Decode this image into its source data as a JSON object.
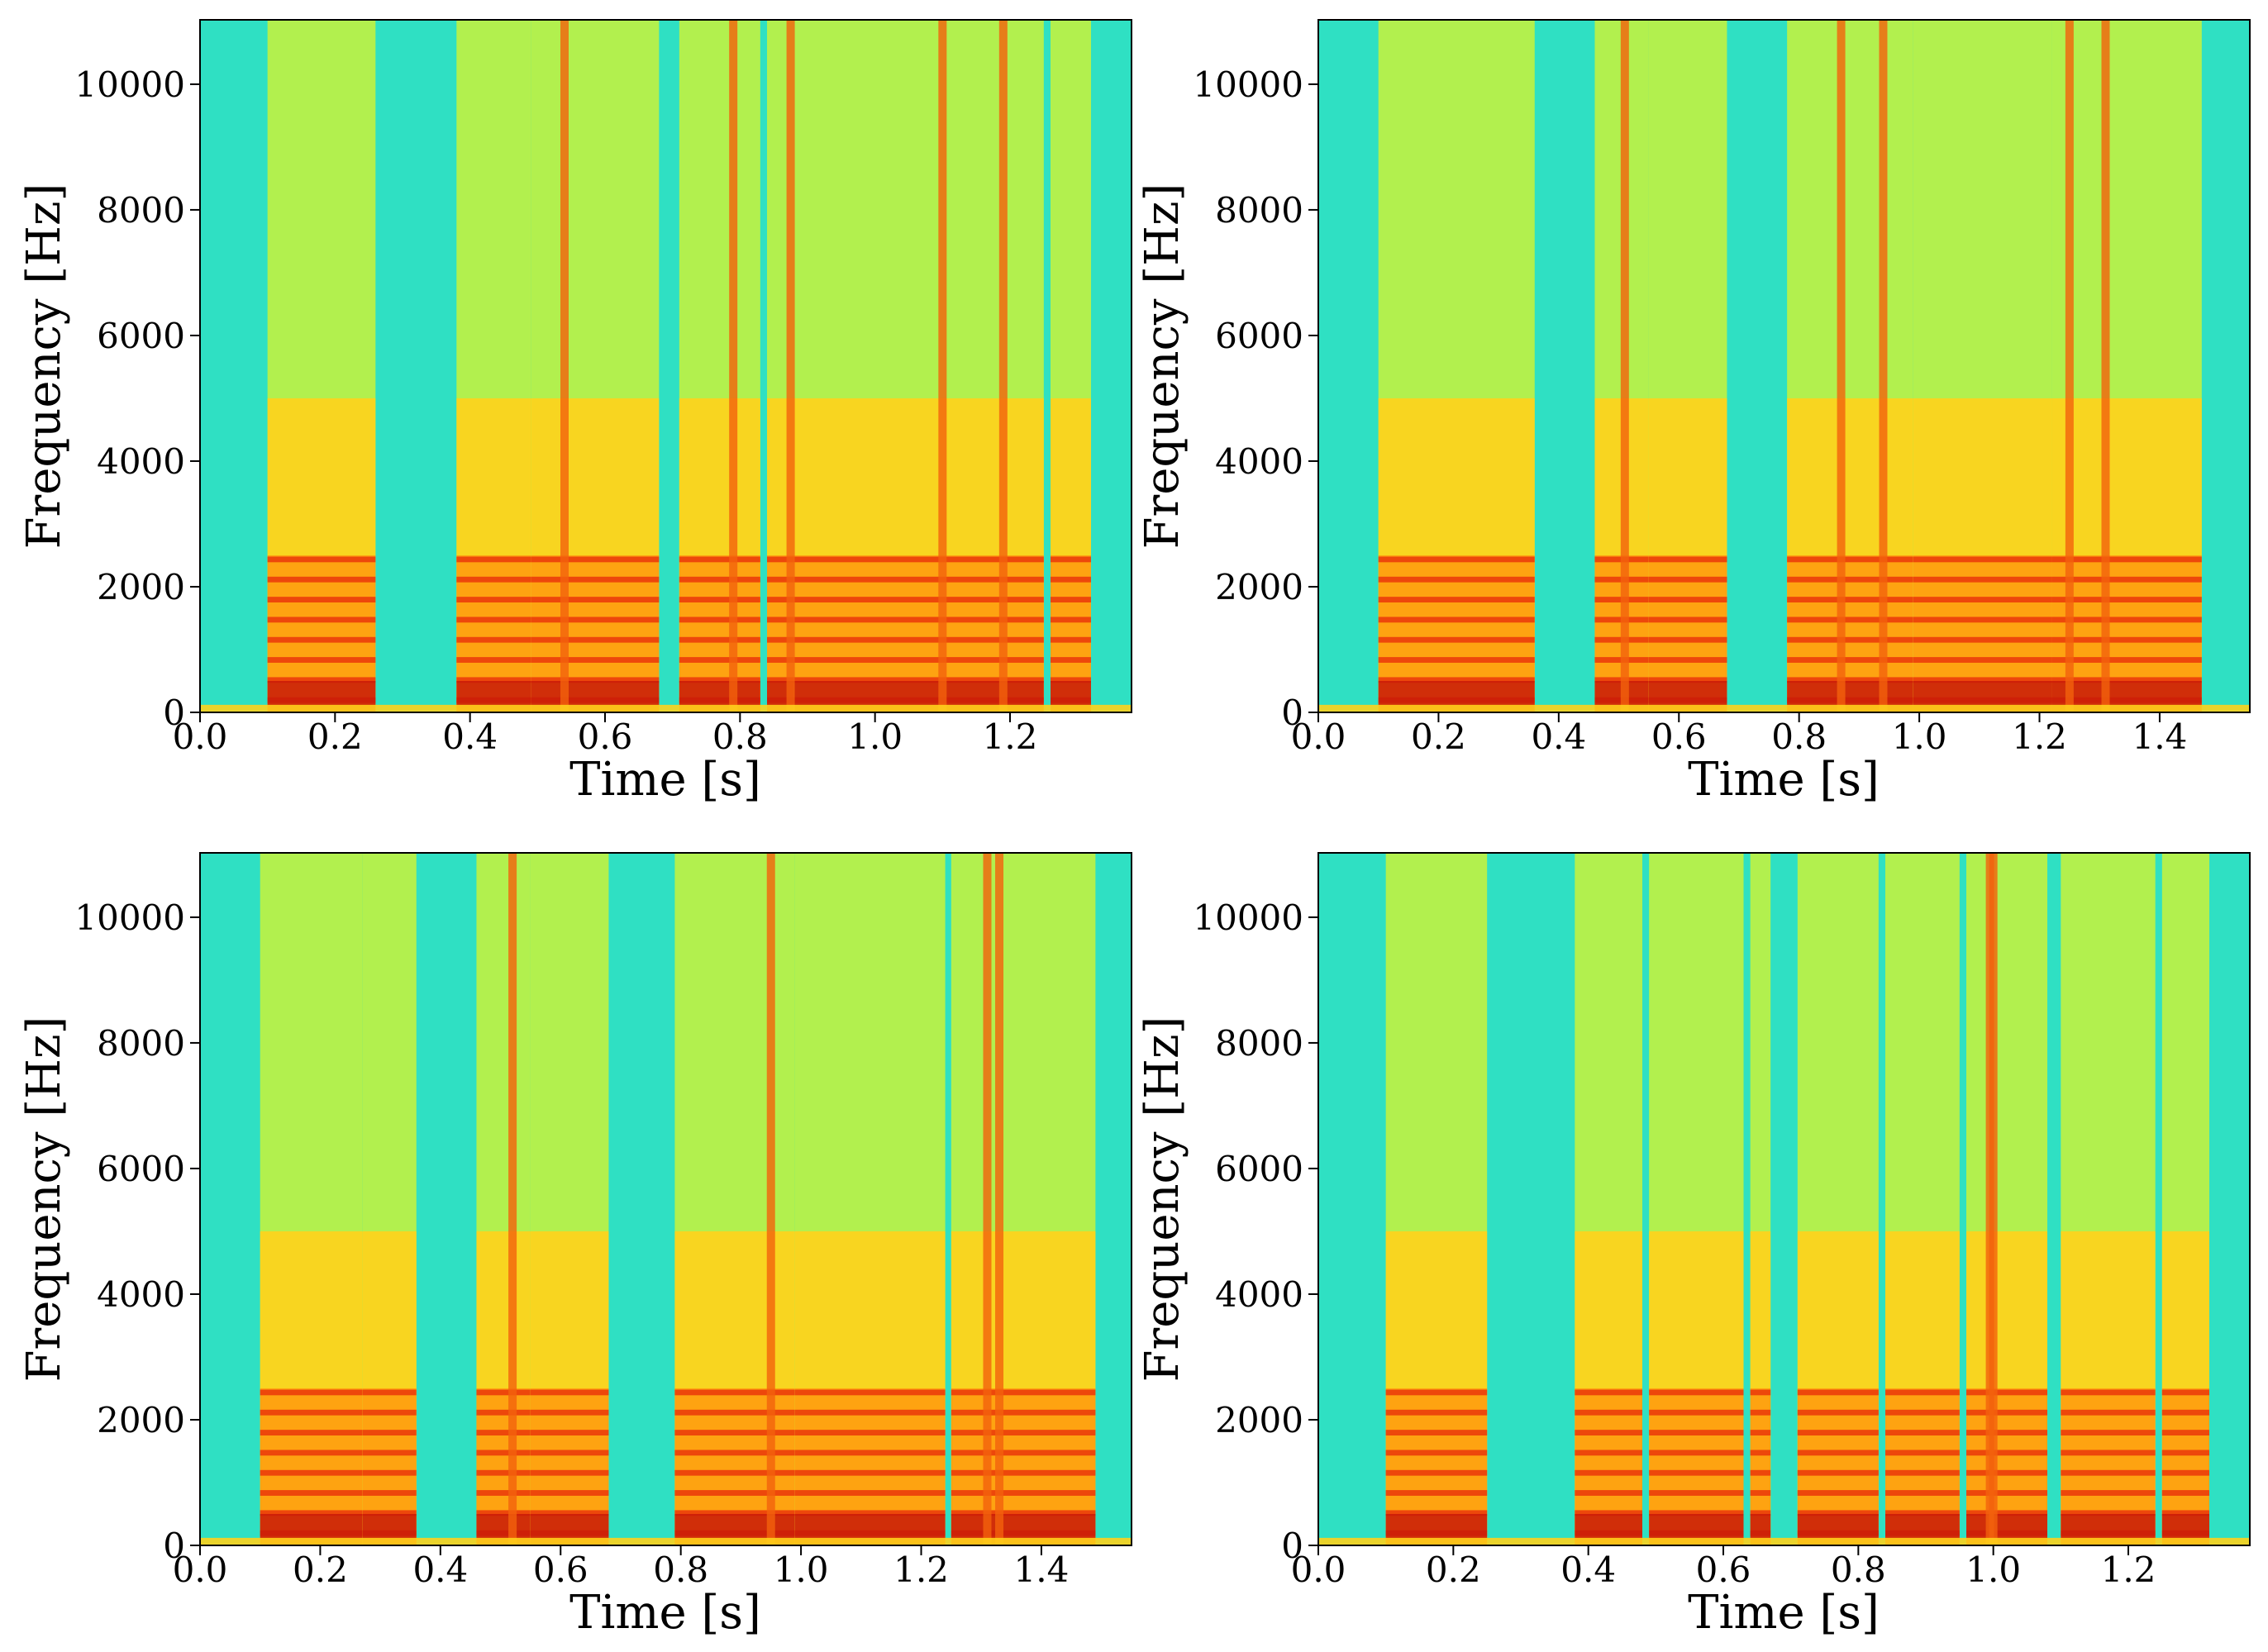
{
  "chart_data": [
    {
      "type": "heatmap",
      "colormap": "jet",
      "xlabel": "Time [s]",
      "ylabel": "Frequency [Hz]",
      "xlim": [
        0,
        1.38
      ],
      "ylim": [
        0,
        11025
      ],
      "x_ticks": [
        0.0,
        0.2,
        0.4,
        0.6,
        0.8,
        1.0,
        1.2
      ],
      "x_tick_labels": [
        "0.0",
        "0.2",
        "0.4",
        "0.6",
        "0.8",
        "1.0",
        "1.2"
      ],
      "y_ticks": [
        0,
        2000,
        4000,
        6000,
        8000,
        10000
      ],
      "y_tick_labels": [
        "0",
        "2000",
        "4000",
        "6000",
        "8000",
        "10000"
      ],
      "speech_segments": [
        [
          0.1,
          0.26
        ],
        [
          0.38,
          0.49
        ],
        [
          0.49,
          0.63
        ],
        [
          0.63,
          0.68
        ],
        [
          0.71,
          0.83
        ],
        [
          0.84,
          0.88
        ],
        [
          0.88,
          0.96
        ],
        [
          0.96,
          1.08
        ],
        [
          1.08,
          1.25
        ],
        [
          1.26,
          1.32
        ]
      ],
      "bright_bands": [
        0.54,
        0.79,
        0.875,
        1.1,
        1.19
      ]
    },
    {
      "type": "heatmap",
      "colormap": "jet",
      "xlabel": "Time [s]",
      "ylabel": "Frequency [Hz]",
      "xlim": [
        0,
        1.55
      ],
      "ylim": [
        0,
        11025
      ],
      "x_ticks": [
        0.0,
        0.2,
        0.4,
        0.6,
        0.8,
        1.0,
        1.2,
        1.4
      ],
      "x_tick_labels": [
        "0.0",
        "0.2",
        "0.4",
        "0.6",
        "0.8",
        "1.0",
        "1.2",
        "1.4"
      ],
      "y_ticks": [
        0,
        2000,
        4000,
        6000,
        8000,
        10000
      ],
      "y_tick_labels": [
        "0",
        "2000",
        "4000",
        "6000",
        "8000",
        "10000"
      ],
      "speech_segments": [
        [
          0.1,
          0.36
        ],
        [
          0.46,
          0.55
        ],
        [
          0.55,
          0.68
        ],
        [
          0.78,
          0.99
        ],
        [
          0.99,
          1.22
        ],
        [
          1.22,
          1.47
        ]
      ],
      "bright_bands": [
        0.51,
        0.87,
        0.94,
        1.25,
        1.31
      ]
    },
    {
      "type": "heatmap",
      "colormap": "jet",
      "xlabel": "Time [s]",
      "ylabel": "Frequency [Hz]",
      "xlim": [
        0,
        1.55
      ],
      "ylim": [
        0,
        11025
      ],
      "x_ticks": [
        0.0,
        0.2,
        0.4,
        0.6,
        0.8,
        1.0,
        1.2,
        1.4
      ],
      "x_tick_labels": [
        "0.0",
        "0.2",
        "0.4",
        "0.6",
        "0.8",
        "1.0",
        "1.2",
        "1.4"
      ],
      "y_ticks": [
        0,
        2000,
        4000,
        6000,
        8000,
        10000
      ],
      "y_tick_labels": [
        "0",
        "2000",
        "4000",
        "6000",
        "8000",
        "10000"
      ],
      "speech_segments": [
        [
          0.1,
          0.27
        ],
        [
          0.27,
          0.36
        ],
        [
          0.46,
          0.55
        ],
        [
          0.55,
          0.68
        ],
        [
          0.79,
          0.99
        ],
        [
          0.99,
          1.24
        ],
        [
          1.25,
          1.49
        ]
      ],
      "bright_bands": [
        0.52,
        0.95,
        1.31,
        1.33
      ]
    },
    {
      "type": "heatmap",
      "colormap": "jet",
      "xlabel": "Time [s]",
      "ylabel": "Frequency [Hz]",
      "xlim": [
        0,
        1.38
      ],
      "ylim": [
        0,
        11025
      ],
      "x_ticks": [
        0.0,
        0.2,
        0.4,
        0.6,
        0.8,
        1.0,
        1.2
      ],
      "x_tick_labels": [
        "0.0",
        "0.2",
        "0.4",
        "0.6",
        "0.8",
        "1.0",
        "1.2"
      ],
      "y_ticks": [
        0,
        2000,
        4000,
        6000,
        8000,
        10000
      ],
      "y_tick_labels": [
        "0",
        "2000",
        "4000",
        "6000",
        "8000",
        "10000"
      ],
      "speech_segments": [
        [
          0.1,
          0.25
        ],
        [
          0.38,
          0.48
        ],
        [
          0.49,
          0.63
        ],
        [
          0.64,
          0.67
        ],
        [
          0.71,
          0.83
        ],
        [
          0.84,
          0.95
        ],
        [
          0.96,
          1.08
        ],
        [
          1.1,
          1.24
        ],
        [
          1.25,
          1.32
        ]
      ],
      "bright_bands": [
        0.995,
        1.0
      ]
    }
  ]
}
